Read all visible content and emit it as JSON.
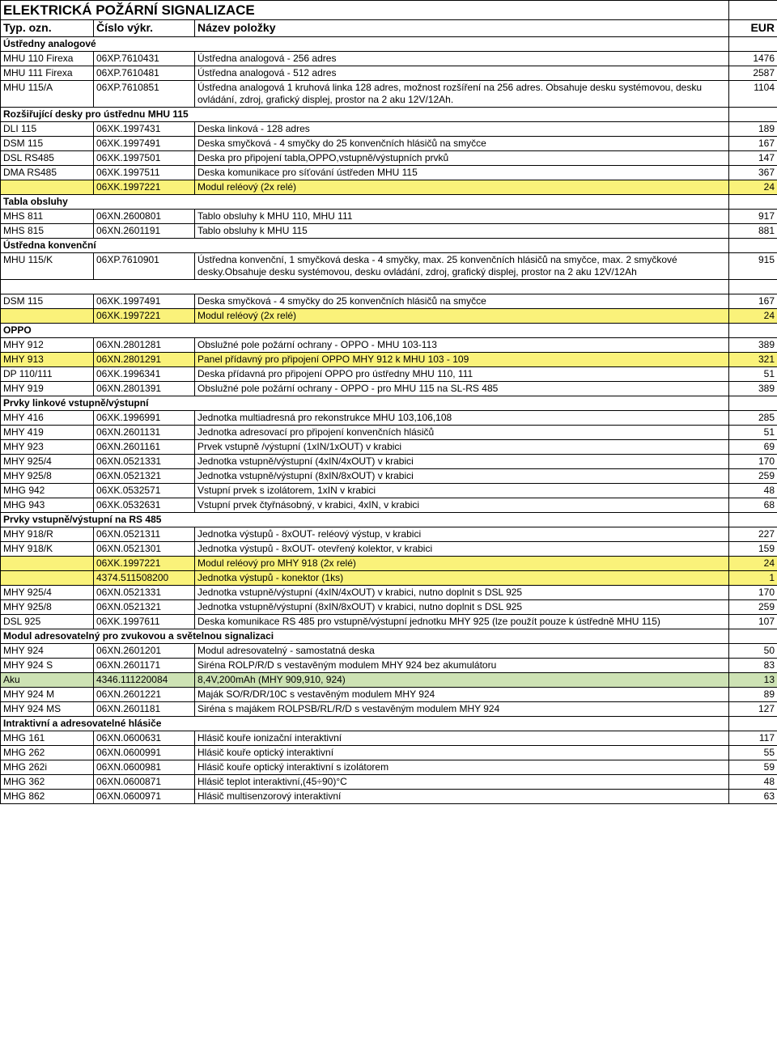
{
  "title": "ELEKTRICKÁ POŽÁRNÍ SIGNALIZACE",
  "header": {
    "c1": "Typ. ozn.",
    "c2": "Číslo výkr.",
    "c3": "Název položky",
    "c4": "EUR"
  },
  "colors": {
    "yellow": "#faf27a",
    "green": "#cde2b4",
    "border": "#000000",
    "bg": "#ffffff"
  },
  "sections": {
    "ustredny_an": "Ústředny analogové",
    "rozsir": "Rozšiřující desky pro  ústřednu MHU 115",
    "tabla": "Tabla obsluhy",
    "ustr_konv": "Ústředna konvenční",
    "oppo": "OPPO",
    "prvky_link": "Prvky linkové vstupně/výstupní",
    "prvky_rs485": "Prvky vstupně/výstupní na RS 485",
    "modul_adr": "Modul adresovatelný pro zvukovou a světelnou signalizaci",
    "intra": "Intraktivní a adresovatelné hlásiče"
  },
  "rows": {
    "r1": {
      "c1": "MHU 110 Firexa",
      "c2": "06XP.7610431",
      "c3": "Ústředna analogová - 256 adres",
      "c4": "1476"
    },
    "r2": {
      "c1": "MHU 111 Firexa",
      "c2": "06XP.7610481",
      "c3": "Ústředna analogová - 512 adres",
      "c4": "2587"
    },
    "r3": {
      "c1": "MHU 115/A",
      "c2": "06XP.7610851",
      "c3": "Ústředna analogová 1 kruhová linka 128 adres, možnost rozšíření na 256 adres. Obsahuje desku systémovou, desku ovládání, zdroj, grafický displej, prostor na 2 aku 12V/12Ah.",
      "c4": "1104"
    },
    "r4": {
      "c1": "DLI 115",
      "c2": "06XK.1997431",
      "c3": "Deska linková - 128 adres",
      "c4": "189"
    },
    "r5": {
      "c1": "DSM 115",
      "c2": "06XK.1997491",
      "c3": "Deska smyčková - 4 smyčky do 25 konvenčních hlásičů na smyčce",
      "c4": "167"
    },
    "r6": {
      "c1": "DSL RS485",
      "c2": "06XK.1997501",
      "c3": "Deska pro připojení tabla,OPPO,vstupně/výstupních prvků",
      "c4": "147"
    },
    "r7": {
      "c1": "DMA RS485",
      "c2": "06XK.1997511",
      "c3": "Deska komunikace pro síťování ústředen MHU 115",
      "c4": "367"
    },
    "r8": {
      "c1": "",
      "c2": "06XK.1997221",
      "c3": "Modul reléový (2x relé)",
      "c4": "24"
    },
    "r9": {
      "c1": "MHS 811",
      "c2": "06XN.2600801",
      "c3": "Tablo obsluhy k MHU 110, MHU 111",
      "c4": "917"
    },
    "r10": {
      "c1": "MHS 815",
      "c2": "06XN.2601191",
      "c3": "Tablo obsluhy k MHU 115",
      "c4": "881"
    },
    "r11": {
      "c1": "MHU 115/K",
      "c2": "06XP.7610901",
      "c3": "Ústředna konvenční, 1 smyčková deska - 4 smyčky, max. 25  konvenčních hlásičů na smyčce, max. 2 smyčkové desky.Obsahuje desku systémovou, desku ovládání, zdroj, grafický displej, prostor na 2 aku 12V/12Ah",
      "c4": "915"
    },
    "r12": {
      "c1": "DSM 115",
      "c2": "06XK.1997491",
      "c3": "Deska smyčková - 4 smyčky do 25 konvenčních hlásičů na smyčce",
      "c4": "167"
    },
    "r13": {
      "c1": "",
      "c2": "06XK.1997221",
      "c3": "Modul reléový (2x relé)",
      "c4": "24"
    },
    "r14": {
      "c1": "MHY 912",
      "c2": "06XN.2801281",
      "c3": "Obslužné pole požární ochrany - OPPO - MHU 103-113",
      "c4": "389"
    },
    "r15": {
      "c1": "MHY 913",
      "c2": "06XN.2801291",
      "c3": "Panel přídavný pro připojení OPPO MHY 912 k MHU 103 - 109",
      "c4": "321"
    },
    "r16": {
      "c1": "DP 110/111",
      "c2": "06XK.1996341",
      "c3": "Deska přídavná pro připojení OPPO pro ústředny MHU 110, 111",
      "c4": "51"
    },
    "r17": {
      "c1": "MHY 919",
      "c2": "06XN.2801391",
      "c3": "Obslužné pole požární ochrany - OPPO - pro MHU 115 na SL-RS 485",
      "c4": "389"
    },
    "r18": {
      "c1": "MHY 416",
      "c2": "06XK.1996991",
      "c3": "Jednotka multiadresná pro rekonstrukce MHU 103,106,108",
      "c4": "285"
    },
    "r19": {
      "c1": "MHY 419",
      "c2": "06XN.2601131",
      "c3": "Jednotka adresovací pro připojení konvenčních hlásičů",
      "c4": "51"
    },
    "r20": {
      "c1": "MHY 923",
      "c2": "06XN.2601161",
      "c3": "Prvek vstupně /výstupní (1xIN/1xOUT) v krabici",
      "c4": "69"
    },
    "r21": {
      "c1": "MHY 925/4",
      "c2": "06XN.0521331",
      "c3": "Jednotka vstupně/výstupní (4xIN/4xOUT) v krabici",
      "c4": "170"
    },
    "r22": {
      "c1": "MHY 925/8",
      "c2": "06XN.0521321",
      "c3": "Jednotka vstupně/výstupní (8xIN/8xOUT) v krabici",
      "c4": "259"
    },
    "r23": {
      "c1": "MHG 942",
      "c2": "06XK.0532571",
      "c3": "Vstupní prvek s izolátorem, 1xIN v krabici",
      "c4": "48"
    },
    "r24": {
      "c1": "MHG 943",
      "c2": "06XK.0532631",
      "c3": "Vstupní prvek čtyřnásobný, v krabici, 4xIN, v krabici",
      "c4": "68"
    },
    "r25": {
      "c1": "MHY 918/R",
      "c2": "06XN.0521311",
      "c3": "Jednotka výstupů - 8xOUT- reléový výstup, v krabici",
      "c4": "227"
    },
    "r26": {
      "c1": "MHY 918/K",
      "c2": "06XN.0521301",
      "c3": "Jednotka výstupů - 8xOUT- otevřený kolektor, v krabici",
      "c4": "159"
    },
    "r27": {
      "c1": "",
      "c2": "06XK.1997221",
      "c3": "Modul reléový pro MHY 918 (2x relé)",
      "c4": "24"
    },
    "r28": {
      "c1": "",
      "c2": "4374.511508200",
      "c3": "Jednotka výstupů - konektor (1ks)",
      "c4": "1"
    },
    "r29": {
      "c1": "MHY 925/4",
      "c2": "06XN.0521331",
      "c3": "Jednotka vstupně/výstupní (4xIN/4xOUT) v krabici, nutno doplnit s DSL 925",
      "c4": "170"
    },
    "r30": {
      "c1": "MHY 925/8",
      "c2": "06XN.0521321",
      "c3": "Jednotka vstupně/výstupní (8xIN/8xOUT) v krabici, nutno doplnit s DSL 925",
      "c4": "259"
    },
    "r31": {
      "c1": "DSL 925",
      "c2": "06XK.1997611",
      "c3": "Deska komunikace RS 485 pro vstupně/výstupní jednotku MHY 925 (lze použít pouze k ústředně MHU 115)",
      "c4": "107"
    },
    "r32": {
      "c1": "MHY 924",
      "c2": "06XN.2601201",
      "c3": "Modul adresovatelný - samostatná deska",
      "c4": "50"
    },
    "r33": {
      "c1": "MHY 924 S",
      "c2": "06XN.2601171",
      "c3": "Siréna ROLP/R/D s vestavěným modulem MHY 924 bez akumulátoru",
      "c4": "83"
    },
    "r34": {
      "c1": "Aku",
      "c2": "4346.111220084",
      "c3": "8,4V,200mAh (MHY 909,910, 924)",
      "c4": "13"
    },
    "r35": {
      "c1": "MHY 924 M",
      "c2": "06XN.2601221",
      "c3": "Maják SO/R/DR/10C s vestavěným modulem MHY 924",
      "c4": "89"
    },
    "r36": {
      "c1": "MHY 924 MS",
      "c2": "06XN.2601181",
      "c3": "Siréna s majákem ROLPSB/RL/R/D s vestavěným modulem MHY 924",
      "c4": "127"
    },
    "r37": {
      "c1": "MHG 161",
      "c2": "06XN.0600631",
      "c3": "Hlásič kouře ionizační interaktivní",
      "c4": "117"
    },
    "r38": {
      "c1": "MHG 262",
      "c2": "06XN.0600991",
      "c3": "Hlásič kouře optický interaktivní",
      "c4": "55"
    },
    "r39": {
      "c1": "MHG 262i",
      "c2": "06XN.0600981",
      "c3": "Hlásič kouře optický interaktivní s izolátorem",
      "c4": "59"
    },
    "r40": {
      "c1": "MHG 362",
      "c2": "06XN.0600871",
      "c3": "Hlásič teplot interaktivní,(45÷90)°C",
      "c4": "48"
    },
    "r41": {
      "c1": "MHG 862",
      "c2": "06XN.0600971",
      "c3": "Hlásič multisenzorový interaktivní",
      "c4": "63"
    }
  }
}
